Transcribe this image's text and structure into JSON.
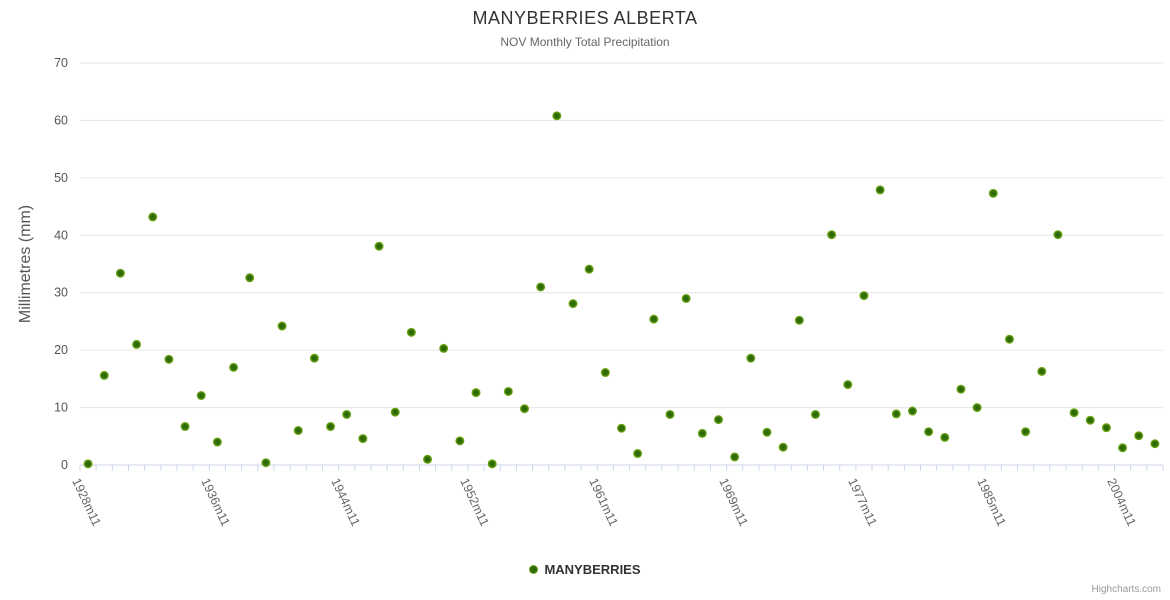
{
  "chart_data": {
    "type": "scatter",
    "title": "MANYBERRIES ALBERTA",
    "subtitle": "NOV Monthly Total Precipitation",
    "xlabel": "",
    "ylabel": "Millimetres (mm)",
    "ylim": [
      0,
      70
    ],
    "y_ticks": [
      0,
      10,
      20,
      30,
      40,
      50,
      60,
      70
    ],
    "grid": "horizontal",
    "legend_position": "bottom-center",
    "x_tick_labels": [
      {
        "index": 0,
        "label": "1928m11"
      },
      {
        "index": 8,
        "label": "1936m11"
      },
      {
        "index": 16,
        "label": "1944m11"
      },
      {
        "index": 24,
        "label": "1952m11"
      },
      {
        "index": 32,
        "label": "1961m11"
      },
      {
        "index": 40,
        "label": "1969m11"
      },
      {
        "index": 48,
        "label": "1977m11"
      },
      {
        "index": 56,
        "label": "1985m11"
      },
      {
        "index": 64,
        "label": "2004m11"
      }
    ],
    "series": [
      {
        "name": "MANYBERRIES",
        "color": "#72AD0D",
        "values": [
          0.2,
          15.6,
          33.4,
          21.0,
          43.2,
          18.4,
          6.7,
          12.1,
          4.0,
          17.0,
          32.6,
          0.4,
          24.2,
          6.0,
          18.6,
          6.7,
          8.8,
          4.6,
          38.1,
          9.2,
          23.1,
          1.0,
          20.3,
          4.2,
          12.6,
          0.2,
          12.8,
          9.8,
          31.0,
          60.8,
          28.1,
          34.1,
          16.1,
          6.4,
          2.0,
          25.4,
          8.8,
          29.0,
          5.5,
          7.9,
          1.4,
          18.6,
          5.7,
          3.1,
          25.2,
          8.8,
          40.1,
          14.0,
          29.5,
          47.9,
          8.9,
          9.4,
          5.8,
          4.8,
          13.2,
          10.0,
          47.3,
          21.9,
          5.8,
          16.3,
          40.1,
          9.1,
          7.8,
          6.5,
          3.0,
          5.1,
          3.7
        ]
      }
    ]
  },
  "credits": {
    "label": "Highcharts.com"
  },
  "colors": {
    "marker_rim": "#7CB51E",
    "marker_core": "#2F6B04",
    "grid_line": "#E6E6E6",
    "axis_line": "#CCD6EB",
    "tick": "#CCD6EB",
    "axis_label_text": "#555555",
    "x_label_text": "#666666",
    "title_text": "#333333",
    "subtitle_text": "#666666",
    "legend_text": "#333333",
    "credits_text": "#999999"
  }
}
